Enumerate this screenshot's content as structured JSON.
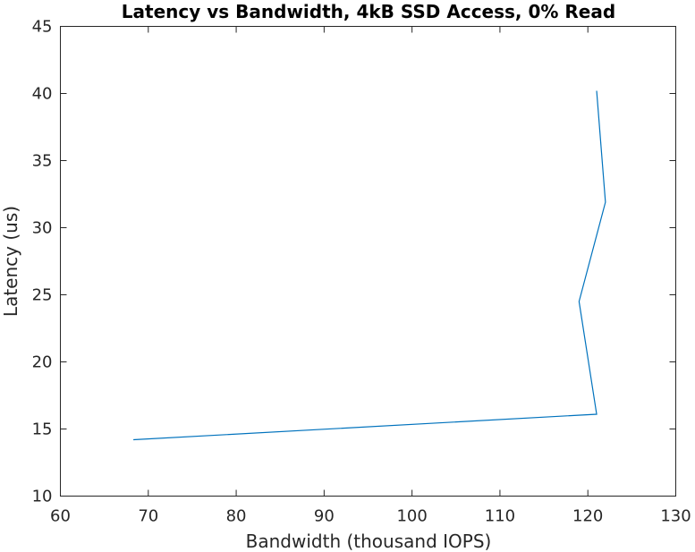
{
  "chart_data": {
    "type": "line",
    "title": "Latency vs Bandwidth, 4kB SSD Access, 0% Read",
    "xlabel": "Bandwidth (thousand IOPS)",
    "ylabel": "Latency (us)",
    "xlim": [
      60,
      130
    ],
    "ylim": [
      10,
      45
    ],
    "xticks": [
      60,
      70,
      80,
      90,
      100,
      110,
      120,
      130
    ],
    "yticks": [
      10,
      15,
      20,
      25,
      30,
      35,
      40,
      45
    ],
    "grid": false,
    "series": [
      {
        "color": "#0072bd",
        "points": [
          {
            "x": 68.3,
            "y": 14.2
          },
          {
            "x": 121.0,
            "y": 16.1
          },
          {
            "x": 119.0,
            "y": 24.5
          },
          {
            "x": 122.0,
            "y": 31.9
          },
          {
            "x": 121.0,
            "y": 40.2
          }
        ]
      }
    ]
  }
}
